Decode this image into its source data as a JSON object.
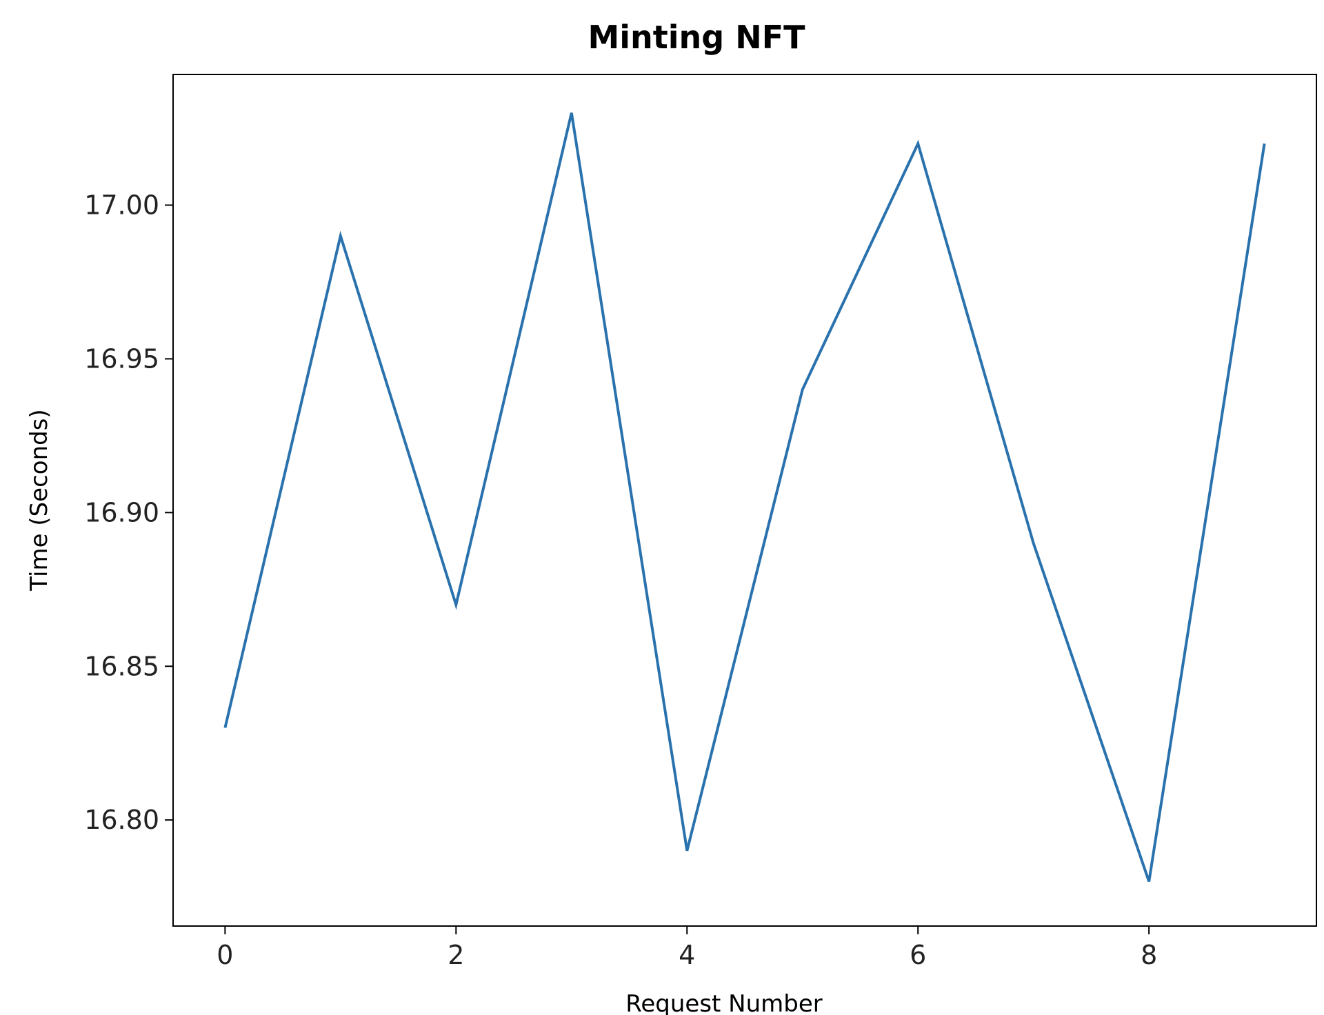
{
  "chart_data": {
    "type": "line",
    "title": "Minting NFT",
    "xlabel": "Request Number",
    "ylabel": "Time (Seconds)",
    "x": [
      0,
      1,
      2,
      3,
      4,
      5,
      6,
      7,
      8,
      9
    ],
    "series": [
      {
        "values": [
          16.83,
          16.99,
          16.87,
          17.03,
          16.79,
          16.94,
          17.02,
          16.89,
          16.78,
          17.02
        ]
      }
    ],
    "xlim": [
      -0.45,
      9.45
    ],
    "ylim": [
      16.7655,
      17.0425
    ],
    "xticks": [
      0,
      2,
      4,
      6,
      8
    ],
    "xtick_labels": [
      "0",
      "2",
      "4",
      "6",
      "8"
    ],
    "yticks": [
      16.8,
      16.85,
      16.9,
      16.95,
      17.0
    ],
    "ytick_labels": [
      "16.80",
      "16.85",
      "16.90",
      "16.95",
      "17.00"
    ],
    "grid": false,
    "colors": {
      "line": "#2a72ad",
      "axes": "#000000"
    }
  }
}
